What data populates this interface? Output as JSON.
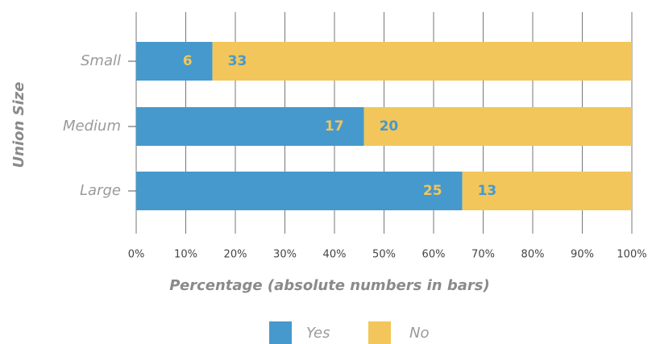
{
  "chart_data": {
    "type": "bar",
    "orientation": "horizontal",
    "stacked": "percent",
    "categories": [
      "Small",
      "Medium",
      "Large"
    ],
    "series": [
      {
        "name": "Yes",
        "color": "#4699cc",
        "label_color": "#f2c65a",
        "values": [
          6,
          17,
          25
        ]
      },
      {
        "name": "No",
        "color": "#f2c65a",
        "label_color": "#4699cc",
        "values": [
          33,
          20,
          13
        ]
      }
    ],
    "xlabel": "Percentage (absolute numbers in bars)",
    "ylabel": "Union Size",
    "xlim": [
      0,
      100
    ],
    "xticks": [
      {
        "value": 0,
        "label": "0%"
      },
      {
        "value": 10,
        "label": "10%"
      },
      {
        "value": 20,
        "label": "20%"
      },
      {
        "value": 30,
        "label": "30%"
      },
      {
        "value": 40,
        "label": "40%"
      },
      {
        "value": 50,
        "label": "50%"
      },
      {
        "value": 60,
        "label": "60%"
      },
      {
        "value": 70,
        "label": "70%"
      },
      {
        "value": 80,
        "label": "80%"
      },
      {
        "value": 90,
        "label": "90%"
      },
      {
        "value": 100,
        "label": "100%"
      }
    ],
    "grid": true,
    "legend": "bottom"
  }
}
